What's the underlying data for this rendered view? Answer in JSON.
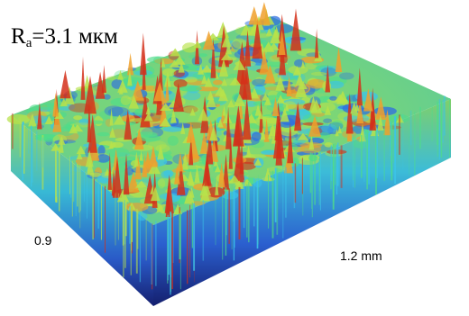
{
  "roughness": {
    "symbol": "R",
    "subscript": "a",
    "value_text": "=3.1 мкм"
  },
  "axes": {
    "y_extent": "0.9",
    "x_extent": "1.2 mm"
  },
  "colormap": [
    "#1a2a9e",
    "#2f6fe0",
    "#3cc4e8",
    "#4fdc8a",
    "#b8e24a",
    "#f0a02c",
    "#d4301a"
  ]
}
